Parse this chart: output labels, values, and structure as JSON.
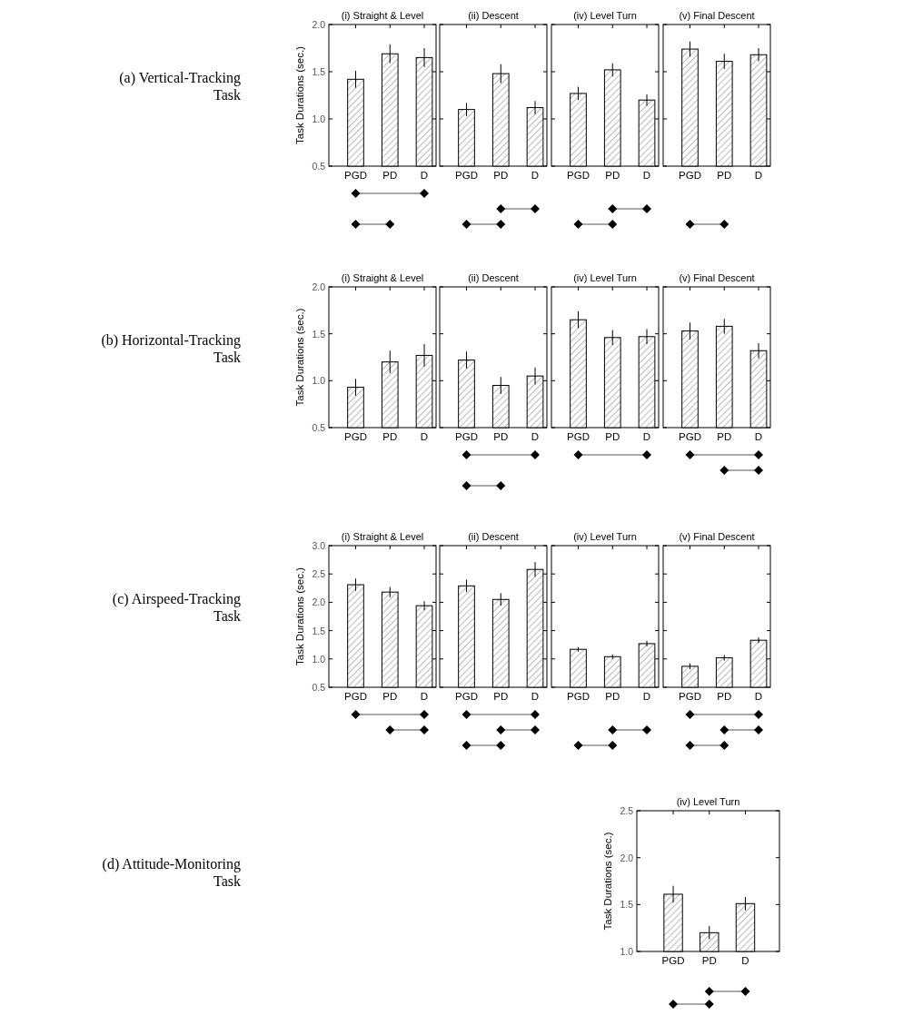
{
  "chart_data": [
    {
      "type": "bar",
      "title": "(i) Straight & Level",
      "ylabel": "Task Durations (sec.)",
      "annotations": [
        "(a) Vertical-Tracking Task"
      ],
      "categories": [
        "PGD",
        "PD",
        "D"
      ],
      "values": [
        1.42,
        1.69,
        1.65
      ],
      "errors": [
        0.09,
        0.1,
        0.1
      ],
      "color": "#000000",
      "ylim": [
        0.5,
        2.0
      ],
      "yticks": [
        {
          "value": 0.5,
          "label": "0.5"
        },
        {
          "value": 1,
          "label": "1.0"
        },
        {
          "value": 1.5,
          "label": "1.5"
        },
        {
          "value": 2,
          "label": "2.0"
        }
      ]
    },
    {
      "type": "bar",
      "title": "(ii) Descent",
      "categories": [
        "PGD",
        "PD",
        "D"
      ],
      "values": [
        1.1,
        1.48,
        1.12
      ],
      "errors": [
        0.07,
        0.1,
        0.07
      ],
      "color": "#000000",
      "ylim": [
        0.5,
        2.0
      ],
      "yticks": [
        {
          "value": 0.5,
          "label": null
        },
        {
          "value": 1,
          "label": null
        },
        {
          "value": 1.5,
          "label": null
        },
        {
          "value": 2,
          "label": null
        }
      ],
      "tick_labels": "x"
    },
    {
      "type": "bar",
      "title": "(iv) Level Turn",
      "categories": [
        "PGD",
        "PD",
        "D"
      ],
      "values": [
        1.27,
        1.52,
        1.2
      ],
      "errors": [
        0.07,
        0.07,
        0.06
      ],
      "color": "#000000",
      "ylim": [
        0.5,
        2.0
      ],
      "yticks": [
        {
          "value": 0.5,
          "label": null
        },
        {
          "value": 1,
          "label": null
        },
        {
          "value": 1.5,
          "label": null
        },
        {
          "value": 2,
          "label": null
        }
      ],
      "tick_labels": "x"
    },
    {
      "type": "bar",
      "title": "(v) Final Descent",
      "categories": [
        "PGD",
        "PD",
        "D"
      ],
      "values": [
        1.74,
        1.61,
        1.68
      ],
      "errors": [
        0.08,
        0.08,
        0.07
      ],
      "color": "#000000",
      "ylim": [
        0.5,
        2.0
      ],
      "yticks": [
        {
          "value": 0.5,
          "label": null
        },
        {
          "value": 1,
          "label": null
        },
        {
          "value": 1.5,
          "label": null
        },
        {
          "value": 2,
          "label": null
        }
      ],
      "tick_labels": "x"
    },
    {
      "type": "bar",
      "title": "(i) Straight & Level",
      "ylabel": "Task Durations (sec.)",
      "annotations": [
        "(b) Horizontal-Tracking Task"
      ],
      "categories": [
        "PGD",
        "PD",
        "D"
      ],
      "values": [
        0.93,
        1.2,
        1.27
      ],
      "errors": [
        0.09,
        0.12,
        0.12
      ],
      "color": "#000000",
      "ylim": [
        0.5,
        2.0
      ],
      "yticks": [
        {
          "value": 0.5,
          "label": "0.5"
        },
        {
          "value": 1,
          "label": "1.0"
        },
        {
          "value": 1.5,
          "label": "1.5"
        },
        {
          "value": 2,
          "label": "2.0"
        }
      ]
    },
    {
      "type": "bar",
      "title": "(ii) Descent",
      "categories": [
        "PGD",
        "PD",
        "D"
      ],
      "values": [
        1.22,
        0.95,
        1.05
      ],
      "errors": [
        0.09,
        0.09,
        0.09
      ],
      "color": "#000000",
      "ylim": [
        0.5,
        2.0
      ],
      "yticks": [
        {
          "value": 0.5,
          "label": null
        },
        {
          "value": 1,
          "label": null
        },
        {
          "value": 1.5,
          "label": null
        },
        {
          "value": 2,
          "label": null
        }
      ],
      "tick_labels": "x"
    },
    {
      "type": "bar",
      "title": "(iv) Level Turn",
      "categories": [
        "PGD",
        "PD",
        "D"
      ],
      "values": [
        1.65,
        1.46,
        1.47
      ],
      "errors": [
        0.09,
        0.08,
        0.08
      ],
      "color": "#000000",
      "ylim": [
        0.5,
        2.0
      ],
      "yticks": [
        {
          "value": 0.5,
          "label": null
        },
        {
          "value": 1,
          "label": null
        },
        {
          "value": 1.5,
          "label": null
        },
        {
          "value": 2,
          "label": null
        }
      ],
      "tick_labels": "x"
    },
    {
      "type": "bar",
      "title": "(v) Final Descent",
      "categories": [
        "PGD",
        "PD",
        "D"
      ],
      "values": [
        1.53,
        1.58,
        1.32
      ],
      "errors": [
        0.09,
        0.08,
        0.08
      ],
      "color": "#000000",
      "ylim": [
        0.5,
        2.0
      ],
      "yticks": [
        {
          "value": 0.5,
          "label": null
        },
        {
          "value": 1,
          "label": null
        },
        {
          "value": 1.5,
          "label": null
        },
        {
          "value": 2,
          "label": null
        }
      ],
      "tick_labels": "x"
    },
    {
      "type": "bar",
      "title": "(i) Straight & Level",
      "ylabel": "Task Durations (sec.)",
      "annotations": [
        "(c) Airspeed-Tracking Task"
      ],
      "categories": [
        "PGD",
        "PD",
        "D"
      ],
      "values": [
        2.31,
        2.18,
        1.94
      ],
      "errors": [
        0.11,
        0.09,
        0.08
      ],
      "color": "#000000",
      "ylim": [
        0.5,
        3.0
      ],
      "yticks": [
        {
          "value": 0.5,
          "label": "0.5"
        },
        {
          "value": 1,
          "label": "1.0"
        },
        {
          "value": 1.5,
          "label": "1.5"
        },
        {
          "value": 2,
          "label": "2.0"
        },
        {
          "value": 2.5,
          "label": "2.5"
        },
        {
          "value": 3,
          "label": "3.0"
        }
      ]
    },
    {
      "type": "bar",
      "title": "(ii) Descent",
      "categories": [
        "PGD",
        "PD",
        "D"
      ],
      "values": [
        2.29,
        2.05,
        2.58
      ],
      "errors": [
        0.11,
        0.11,
        0.13
      ],
      "color": "#000000",
      "ylim": [
        0.5,
        3.0
      ],
      "yticks": [
        {
          "value": 0.5,
          "label": null
        },
        {
          "value": 1,
          "label": null
        },
        {
          "value": 1.5,
          "label": null
        },
        {
          "value": 2,
          "label": null
        },
        {
          "value": 2.5,
          "label": null
        },
        {
          "value": 3,
          "label": null
        }
      ],
      "tick_labels": "x"
    },
    {
      "type": "bar",
      "title": "(iv) Level Turn",
      "categories": [
        "PGD",
        "PD",
        "D"
      ],
      "values": [
        1.17,
        1.04,
        1.27
      ],
      "errors": [
        0.04,
        0.04,
        0.05
      ],
      "color": "#000000",
      "ylim": [
        0.5,
        3.0
      ],
      "yticks": [
        {
          "value": 0.5,
          "label": null
        },
        {
          "value": 1,
          "label": null
        },
        {
          "value": 1.5,
          "label": null
        },
        {
          "value": 2,
          "label": null
        },
        {
          "value": 2.5,
          "label": null
        },
        {
          "value": 3,
          "label": null
        }
      ],
      "tick_labels": "x"
    },
    {
      "type": "bar",
      "title": "(v) Final Descent",
      "categories": [
        "PGD",
        "PD",
        "D"
      ],
      "values": [
        0.87,
        1.02,
        1.33
      ],
      "errors": [
        0.05,
        0.05,
        0.05
      ],
      "color": "#000000",
      "ylim": [
        0.5,
        3.0
      ],
      "yticks": [
        {
          "value": 0.5,
          "label": null
        },
        {
          "value": 1,
          "label": null
        },
        {
          "value": 1.5,
          "label": null
        },
        {
          "value": 2,
          "label": null
        },
        {
          "value": 2.5,
          "label": null
        },
        {
          "value": 3,
          "label": null
        }
      ],
      "tick_labels": "x"
    },
    {
      "type": "bar",
      "title": "(iv) Level Turn",
      "ylabel": "Task Durations (sec.)",
      "annotations": [
        "(d) Attitude-Monitoring Task"
      ],
      "categories": [
        "PGD",
        "PD",
        "D"
      ],
      "values": [
        1.61,
        1.2,
        1.51
      ],
      "errors": [
        0.09,
        0.07,
        0.07
      ],
      "color": "#000000",
      "ylim": [
        1.0,
        2.5
      ],
      "yticks": [
        {
          "value": 1,
          "label": "1.0"
        },
        {
          "value": 1.5,
          "label": "1.5"
        },
        {
          "value": 2,
          "label": "2.0"
        },
        {
          "value": 2.5,
          "label": "2.5"
        }
      ]
    }
  ]
}
